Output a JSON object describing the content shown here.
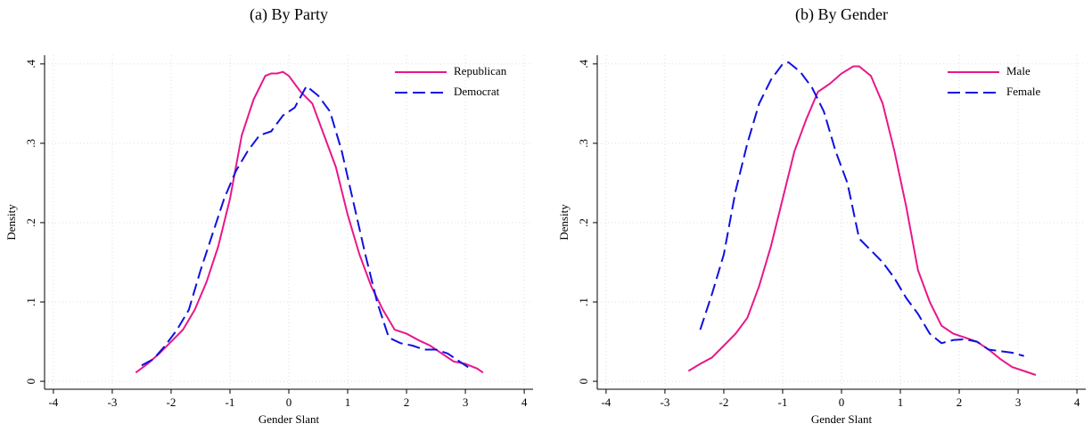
{
  "chart_data": [
    {
      "type": "line",
      "title": "(a) By Party",
      "xlabel": "Gender Slant",
      "ylabel": "Density",
      "xlim": [
        -4.15,
        4.15
      ],
      "ylim": [
        -0.01,
        0.411
      ],
      "xticks": [
        -4,
        -3,
        -2,
        -1,
        0,
        1,
        2,
        3,
        4
      ],
      "yticks": [
        {
          "value": 0,
          "label": "0"
        },
        {
          "value": 0.1,
          "label": ".1"
        },
        {
          "value": 0.2,
          "label": ".2"
        },
        {
          "value": 0.3,
          "label": ".3"
        },
        {
          "value": 0.4,
          "label": ".4"
        }
      ],
      "grid": true,
      "legend": "top-right",
      "series": [
        {
          "name": "Republican",
          "color": "#e8178a",
          "dash": "solid",
          "x": [
            -2.6,
            -2.4,
            -2.2,
            -2.0,
            -1.8,
            -1.6,
            -1.4,
            -1.2,
            -1.0,
            -0.8,
            -0.6,
            -0.4,
            -0.3,
            -0.2,
            -0.1,
            0,
            0.2,
            0.4,
            0.6,
            0.8,
            1.0,
            1.2,
            1.4,
            1.6,
            1.8,
            2.0,
            2.2,
            2.4,
            2.6,
            2.8,
            3.0,
            3.2,
            3.3
          ],
          "values": [
            0.011,
            0.022,
            0.035,
            0.05,
            0.065,
            0.09,
            0.125,
            0.17,
            0.23,
            0.31,
            0.355,
            0.385,
            0.388,
            0.388,
            0.39,
            0.385,
            0.365,
            0.35,
            0.31,
            0.27,
            0.21,
            0.16,
            0.12,
            0.09,
            0.065,
            0.06,
            0.052,
            0.045,
            0.035,
            0.025,
            0.022,
            0.016,
            0.011
          ]
        },
        {
          "name": "Democrat",
          "color": "#1010e0",
          "dash": "dashed",
          "x": [
            -2.5,
            -2.3,
            -2.1,
            -1.9,
            -1.7,
            -1.5,
            -1.3,
            -1.1,
            -0.9,
            -0.7,
            -0.5,
            -0.3,
            -0.1,
            0.1,
            0.3,
            0.5,
            0.7,
            0.9,
            1.1,
            1.3,
            1.5,
            1.7,
            1.9,
            2.1,
            2.3,
            2.5,
            2.7,
            2.9,
            3.1
          ],
          "values": [
            0.02,
            0.028,
            0.045,
            0.065,
            0.09,
            0.14,
            0.185,
            0.23,
            0.265,
            0.29,
            0.31,
            0.315,
            0.335,
            0.345,
            0.372,
            0.36,
            0.34,
            0.29,
            0.225,
            0.16,
            0.1,
            0.055,
            0.048,
            0.045,
            0.04,
            0.04,
            0.035,
            0.025,
            0.015
          ]
        }
      ]
    },
    {
      "type": "line",
      "title": "(b) By Gender",
      "xlabel": "Gender Slant",
      "ylabel": "Density",
      "xlim": [
        -4.15,
        4.15
      ],
      "ylim": [
        -0.01,
        0.411
      ],
      "xticks": [
        -4,
        -3,
        -2,
        -1,
        0,
        1,
        2,
        3,
        4
      ],
      "yticks": [
        {
          "value": 0,
          "label": "0"
        },
        {
          "value": 0.1,
          "label": ".1"
        },
        {
          "value": 0.2,
          "label": ".2"
        },
        {
          "value": 0.3,
          "label": ".3"
        },
        {
          "value": 0.4,
          "label": ".4"
        }
      ],
      "grid": true,
      "legend": "top-right",
      "series": [
        {
          "name": "Male",
          "color": "#e8178a",
          "dash": "solid",
          "x": [
            -2.6,
            -2.4,
            -2.2,
            -2.0,
            -1.8,
            -1.6,
            -1.4,
            -1.2,
            -1.0,
            -0.8,
            -0.6,
            -0.4,
            -0.2,
            0,
            0.2,
            0.3,
            0.5,
            0.7,
            0.9,
            1.1,
            1.3,
            1.5,
            1.7,
            1.9,
            2.1,
            2.3,
            2.5,
            2.7,
            2.9,
            3.1,
            3.3
          ],
          "values": [
            0.013,
            0.022,
            0.03,
            0.045,
            0.06,
            0.08,
            0.12,
            0.17,
            0.23,
            0.29,
            0.33,
            0.365,
            0.375,
            0.388,
            0.397,
            0.397,
            0.385,
            0.35,
            0.29,
            0.22,
            0.14,
            0.1,
            0.07,
            0.06,
            0.055,
            0.05,
            0.04,
            0.028,
            0.018,
            0.013,
            0.008
          ]
        },
        {
          "name": "Female",
          "color": "#1010e0",
          "dash": "dashed",
          "x": [
            -2.4,
            -2.2,
            -2.0,
            -1.8,
            -1.6,
            -1.4,
            -1.2,
            -1.0,
            -0.9,
            -0.7,
            -0.5,
            -0.3,
            -0.1,
            0.1,
            0.3,
            0.5,
            0.7,
            0.9,
            1.1,
            1.3,
            1.5,
            1.7,
            1.9,
            2.1,
            2.3,
            2.5,
            2.7,
            2.9,
            3.1
          ],
          "values": [
            0.065,
            0.11,
            0.16,
            0.24,
            0.3,
            0.35,
            0.38,
            0.4,
            0.402,
            0.39,
            0.37,
            0.34,
            0.29,
            0.25,
            0.18,
            0.165,
            0.15,
            0.13,
            0.105,
            0.085,
            0.06,
            0.048,
            0.052,
            0.053,
            0.05,
            0.04,
            0.038,
            0.036,
            0.032
          ]
        }
      ]
    }
  ]
}
